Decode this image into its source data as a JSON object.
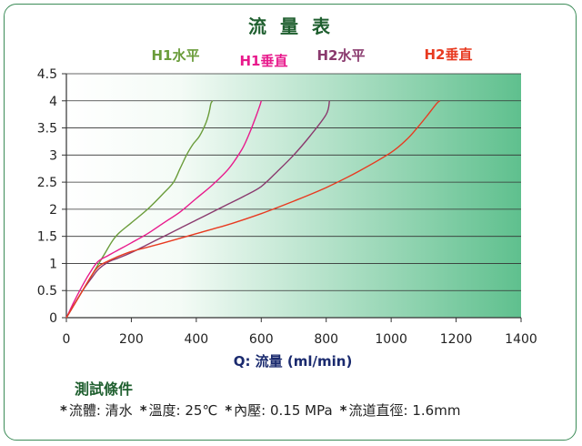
{
  "chart_data": {
    "type": "line",
    "title": "流 量 表",
    "xlabel": "Q: 流量 (ml/min)",
    "ylabel": "",
    "xlim": [
      0,
      1400
    ],
    "ylim": [
      0,
      4.5
    ],
    "x_ticks": [
      "0",
      "200",
      "400",
      "600",
      "800",
      "1000",
      "1200",
      "1400"
    ],
    "y_ticks": [
      "0",
      "0.5",
      "1",
      "1.5",
      "2",
      "2.5",
      "3",
      "3.5",
      "4",
      "4.5"
    ],
    "grid": "horizontal",
    "background": "white-to-green gradient",
    "series": [
      {
        "name": "H1水平",
        "color": "#6a9c3a",
        "x": [
          0,
          20,
          50,
          80,
          100,
          120,
          140,
          160,
          200,
          250,
          300,
          330,
          350,
          370,
          390,
          410,
          430,
          440,
          445,
          450
        ],
        "y": [
          0,
          0.2,
          0.5,
          0.8,
          1.0,
          1.2,
          1.4,
          1.55,
          1.75,
          2.0,
          2.3,
          2.5,
          2.75,
          3.0,
          3.2,
          3.35,
          3.6,
          3.8,
          3.95,
          4.0
        ]
      },
      {
        "name": "H1垂直",
        "color": "#e81a8c",
        "x": [
          0,
          20,
          50,
          80,
          100,
          130,
          160,
          200,
          250,
          300,
          350,
          400,
          450,
          500,
          540,
          560,
          580,
          595,
          600
        ],
        "y": [
          0,
          0.25,
          0.6,
          0.9,
          1.05,
          1.15,
          1.25,
          1.38,
          1.55,
          1.75,
          1.95,
          2.2,
          2.45,
          2.75,
          3.1,
          3.35,
          3.65,
          3.9,
          4.0
        ]
      },
      {
        "name": "H2水平",
        "color": "#8a3a6e",
        "x": [
          0,
          20,
          50,
          80,
          100,
          130,
          160,
          200,
          250,
          300,
          350,
          400,
          450,
          500,
          550,
          600,
          650,
          700,
          750,
          800,
          810
        ],
        "y": [
          0,
          0.2,
          0.5,
          0.75,
          0.9,
          1.03,
          1.1,
          1.2,
          1.35,
          1.5,
          1.65,
          1.8,
          1.95,
          2.1,
          2.25,
          2.42,
          2.7,
          3.0,
          3.35,
          3.75,
          4.0
        ]
      },
      {
        "name": "H2垂直",
        "color": "#e83a20",
        "x": [
          0,
          20,
          50,
          80,
          100,
          130,
          160,
          200,
          250,
          300,
          400,
          500,
          600,
          700,
          800,
          900,
          1000,
          1050,
          1080,
          1110,
          1140,
          1150
        ],
        "y": [
          0,
          0.2,
          0.5,
          0.8,
          0.95,
          1.05,
          1.13,
          1.22,
          1.3,
          1.38,
          1.55,
          1.72,
          1.92,
          2.15,
          2.4,
          2.7,
          3.05,
          3.3,
          3.5,
          3.72,
          3.95,
          4.0
        ]
      }
    ]
  },
  "conditions": {
    "title": "測試條件",
    "star": "*",
    "items": [
      "流體: 清水",
      "溫度: 25℃",
      "內壓: 0.15 MPa",
      "流道直徑: 1.6mm"
    ]
  }
}
